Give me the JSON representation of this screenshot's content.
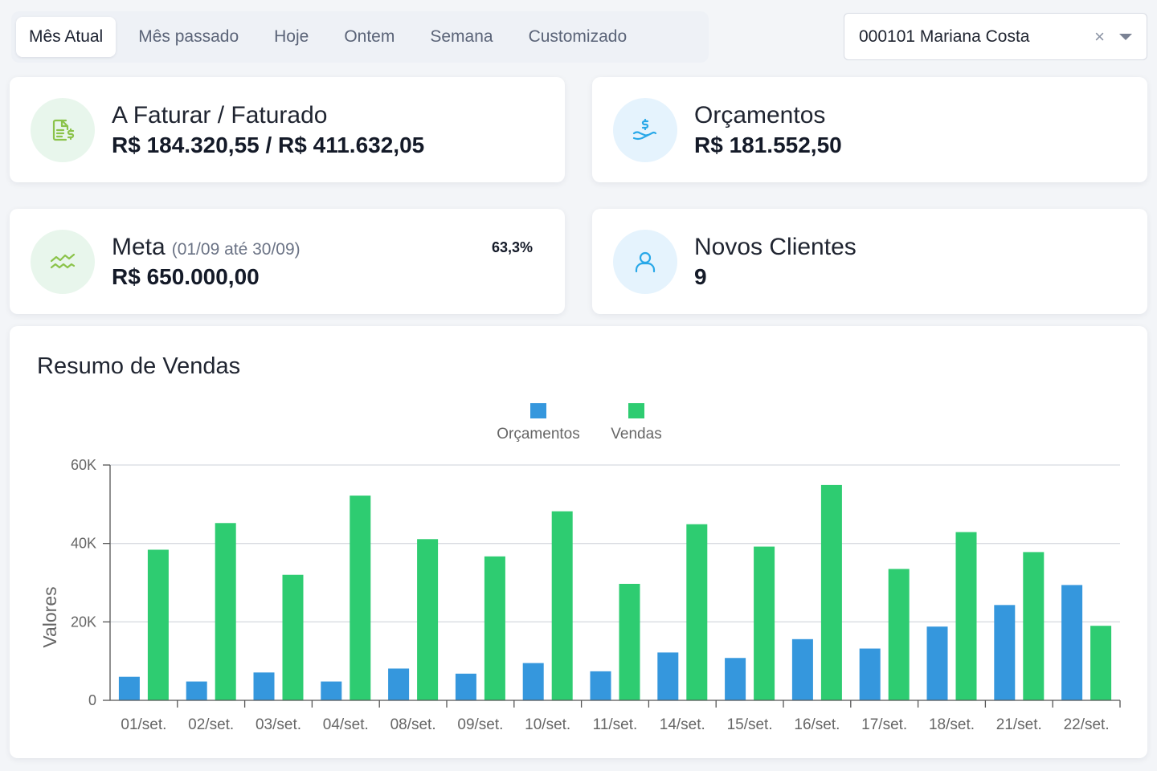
{
  "tabs": [
    {
      "label": "Mês Atual",
      "active": true
    },
    {
      "label": "Mês passado",
      "active": false
    },
    {
      "label": "Hoje",
      "active": false
    },
    {
      "label": "Ontem",
      "active": false
    },
    {
      "label": "Semana",
      "active": false
    },
    {
      "label": "Customizado",
      "active": false
    }
  ],
  "client_select": {
    "value": "000101 Mariana Costa",
    "clear_symbol": "×"
  },
  "cards": {
    "faturar": {
      "label": "A Faturar / Faturado",
      "value": "R$ 184.320,55 / R$ 411.632,05",
      "icon": "invoice-dollar-icon"
    },
    "orcamentos": {
      "label": "Orçamentos",
      "value": "R$ 181.552,50",
      "icon": "hand-dollar-icon"
    },
    "meta": {
      "label": "Meta",
      "period": "(01/09 até 30/09)",
      "value": "R$ 650.000,00",
      "percent": "63,3%",
      "icon": "trend-lines-icon"
    },
    "novos_clientes": {
      "label": "Novos Clientes",
      "value": "9",
      "icon": "user-icon"
    }
  },
  "colors": {
    "orcamentos": "#3597dd",
    "vendas": "#2ecc71",
    "icon_green": "#8bc34a",
    "icon_blue": "#29a8e8"
  },
  "chart_title": "Resumo de Vendas",
  "chart_data": {
    "type": "bar",
    "title": "Resumo de Vendas",
    "ylabel": "Valores",
    "ylim": [
      0,
      60000
    ],
    "yticks": [
      {
        "value": 0,
        "label": "0"
      },
      {
        "value": 20000,
        "label": "20K"
      },
      {
        "value": 40000,
        "label": "40K"
      },
      {
        "value": 60000,
        "label": "60K"
      }
    ],
    "legend_position": "top-center",
    "grid": true,
    "categories": [
      "01/set.",
      "02/set.",
      "03/set.",
      "04/set.",
      "08/set.",
      "09/set.",
      "10/set.",
      "11/set.",
      "14/set.",
      "15/set.",
      "16/set.",
      "17/set.",
      "18/set.",
      "21/set.",
      "22/set."
    ],
    "series": [
      {
        "name": "Orçamentos",
        "color": "#3597dd",
        "values": [
          6000,
          4800,
          7100,
          4800,
          8100,
          6800,
          9500,
          7400,
          12200,
          10800,
          15600,
          13200,
          18800,
          24300,
          29400
        ]
      },
      {
        "name": "Vendas",
        "color": "#2ecc71",
        "values": [
          38400,
          45200,
          32000,
          52200,
          41100,
          36700,
          48200,
          29700,
          44900,
          39200,
          54900,
          33500,
          42900,
          37800,
          19000
        ]
      }
    ]
  }
}
